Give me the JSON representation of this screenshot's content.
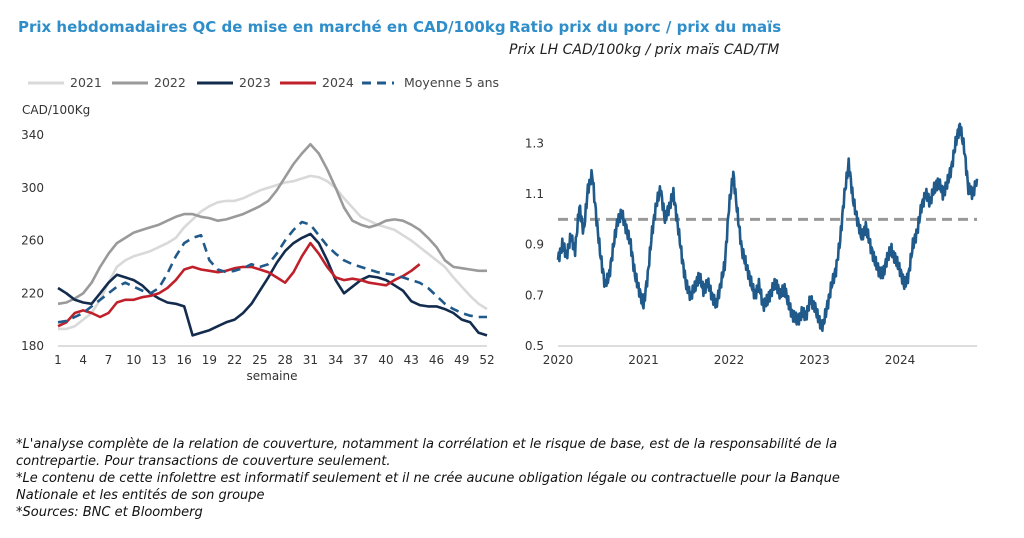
{
  "notes": [
    "*L'analyse complète de la relation de couverture, notamment la corrélation et le risque de base, est de la responsabilité de la contrepartie. Pour transactions de couverture seulement.",
    "*Le contenu de cette infolettre est informatif seulement et il ne crée aucune obligation légale ou contractuelle pour la Banque Nationale et les entités de son groupe",
    "*Sources: BNC et Bloomberg"
  ],
  "chart_data": [
    {
      "type": "line",
      "title": "Prix hebdomadaires QC de mise en marché en CAD/100kg",
      "ylabel": "CAD/100Kg",
      "xlabel": "semaine",
      "xlim": [
        1,
        52
      ],
      "ylim": [
        180,
        340
      ],
      "x_ticks": [
        1,
        4,
        7,
        10,
        13,
        16,
        19,
        22,
        25,
        28,
        31,
        34,
        37,
        40,
        43,
        46,
        49,
        52
      ],
      "y_ticks": [
        180,
        220,
        260,
        300,
        340
      ],
      "grid": false,
      "legend": "top",
      "colors": {
        "2021": "#d9d9d9",
        "2022": "#9a9a9a",
        "2023": "#132c4e",
        "2024": "#c0202a",
        "Moyenne 5 ans": "#1f5a8a"
      },
      "series": [
        {
          "name": "2021",
          "values": [
            193,
            193,
            195,
            200,
            205,
            215,
            228,
            240,
            245,
            248,
            250,
            252,
            255,
            258,
            262,
            270,
            276,
            282,
            286,
            289,
            290,
            290,
            292,
            295,
            298,
            300,
            302,
            304,
            305,
            307,
            309,
            308,
            305,
            300,
            292,
            285,
            278,
            275,
            272,
            270,
            268,
            264,
            260,
            255,
            250,
            245,
            240,
            232,
            225,
            218,
            212,
            208
          ]
        },
        {
          "name": "2022",
          "values": [
            212,
            213,
            216,
            220,
            228,
            240,
            250,
            258,
            262,
            266,
            268,
            270,
            272,
            275,
            278,
            280,
            280,
            278,
            277,
            275,
            276,
            278,
            280,
            283,
            286,
            290,
            298,
            308,
            318,
            326,
            333,
            326,
            314,
            300,
            285,
            275,
            272,
            270,
            272,
            275,
            276,
            275,
            272,
            268,
            262,
            255,
            245,
            240,
            239,
            238,
            237,
            237
          ]
        },
        {
          "name": "2023",
          "values": [
            224,
            220,
            215,
            213,
            212,
            220,
            228,
            234,
            232,
            230,
            226,
            220,
            216,
            213,
            212,
            210,
            188,
            190,
            192,
            195,
            198,
            200,
            205,
            212,
            222,
            232,
            243,
            252,
            258,
            262,
            265,
            258,
            245,
            230,
            220,
            225,
            230,
            233,
            232,
            230,
            226,
            222,
            214,
            211,
            210,
            210,
            208,
            205,
            200,
            198,
            190,
            188
          ]
        },
        {
          "name": "2024",
          "values": [
            195,
            198,
            205,
            207,
            205,
            202,
            205,
            213,
            215,
            215,
            217,
            218,
            220,
            224,
            230,
            238,
            240,
            238,
            237,
            236,
            237,
            239,
            240,
            240,
            238,
            236,
            232,
            228,
            236,
            248,
            258,
            250,
            240,
            232,
            230,
            231,
            230,
            228,
            227,
            226,
            230,
            233,
            237,
            242
          ]
        },
        {
          "name": "Moyenne 5 ans",
          "values": [
            198,
            199,
            202,
            205,
            210,
            215,
            220,
            225,
            228,
            225,
            222,
            220,
            224,
            235,
            248,
            258,
            262,
            264,
            245,
            238,
            236,
            237,
            239,
            242,
            240,
            242,
            250,
            260,
            268,
            274,
            272,
            264,
            256,
            250,
            245,
            242,
            240,
            238,
            236,
            235,
            234,
            232,
            230,
            228,
            224,
            218,
            212,
            208,
            205,
            203,
            202,
            202
          ]
        }
      ]
    },
    {
      "type": "line",
      "title": "Ratio prix du porc / prix du maïs",
      "subtitle": "Prix LH CAD/100kg / prix maïs CAD/TM",
      "x_ticks": [
        "2020",
        "2021",
        "2022",
        "2023",
        "2024"
      ],
      "xlim": [
        2020.0,
        2024.9
      ],
      "ylim": [
        0.5,
        1.4
      ],
      "y_ticks": [
        0.5,
        0.7,
        0.9,
        1.1,
        1.3
      ],
      "reference_line": 1.0,
      "grid": false,
      "colors": {
        "ratio": "#1f5a8a",
        "reference": "#999999"
      },
      "series": [
        {
          "name": "",
          "x": [
            2020.0,
            2020.05,
            2020.1,
            2020.15,
            2020.2,
            2020.25,
            2020.3,
            2020.35,
            2020.4,
            2020.45,
            2020.5,
            2020.55,
            2020.6,
            2020.65,
            2020.7,
            2020.75,
            2020.8,
            2020.85,
            2020.9,
            2020.95,
            2021.0,
            2021.05,
            2021.1,
            2021.15,
            2021.2,
            2021.25,
            2021.3,
            2021.35,
            2021.4,
            2021.45,
            2021.5,
            2021.55,
            2021.6,
            2021.65,
            2021.7,
            2021.75,
            2021.8,
            2021.85,
            2021.9,
            2021.95,
            2022.0,
            2022.05,
            2022.1,
            2022.15,
            2022.2,
            2022.25,
            2022.3,
            2022.35,
            2022.4,
            2022.45,
            2022.5,
            2022.55,
            2022.6,
            2022.65,
            2022.7,
            2022.75,
            2022.8,
            2022.85,
            2022.9,
            2022.95,
            2023.0,
            2023.05,
            2023.1,
            2023.15,
            2023.2,
            2023.25,
            2023.3,
            2023.35,
            2023.4,
            2023.45,
            2023.5,
            2023.55,
            2023.6,
            2023.65,
            2023.7,
            2023.75,
            2023.8,
            2023.85,
            2023.9,
            2023.95,
            2024.0,
            2024.05,
            2024.1,
            2024.15,
            2024.2,
            2024.25,
            2024.3,
            2024.35,
            2024.4,
            2024.45,
            2024.5,
            2024.55,
            2024.6,
            2024.65,
            2024.7,
            2024.75,
            2024.8,
            2024.85,
            2024.9
          ],
          "y": [
            0.84,
            0.9,
            0.86,
            0.93,
            0.88,
            1.05,
            0.95,
            1.12,
            1.18,
            1.0,
            0.85,
            0.74,
            0.78,
            0.9,
            1.0,
            1.02,
            0.96,
            0.9,
            0.78,
            0.72,
            0.66,
            0.78,
            0.95,
            1.06,
            1.12,
            1.0,
            1.05,
            1.1,
            0.98,
            0.85,
            0.74,
            0.7,
            0.73,
            0.78,
            0.72,
            0.75,
            0.7,
            0.66,
            0.74,
            0.82,
            1.05,
            1.18,
            1.02,
            0.88,
            0.82,
            0.76,
            0.7,
            0.74,
            0.66,
            0.68,
            0.72,
            0.75,
            0.7,
            0.73,
            0.66,
            0.62,
            0.6,
            0.63,
            0.62,
            0.68,
            0.66,
            0.6,
            0.58,
            0.66,
            0.74,
            0.8,
            0.92,
            1.1,
            1.22,
            1.08,
            1.0,
            0.93,
            0.97,
            0.9,
            0.84,
            0.8,
            0.78,
            0.85,
            0.88,
            0.84,
            0.8,
            0.74,
            0.78,
            0.9,
            0.95,
            1.05,
            1.1,
            1.07,
            1.12,
            1.15,
            1.1,
            1.14,
            1.2,
            1.3,
            1.37,
            1.28,
            1.12,
            1.1,
            1.16
          ]
        }
      ]
    }
  ]
}
